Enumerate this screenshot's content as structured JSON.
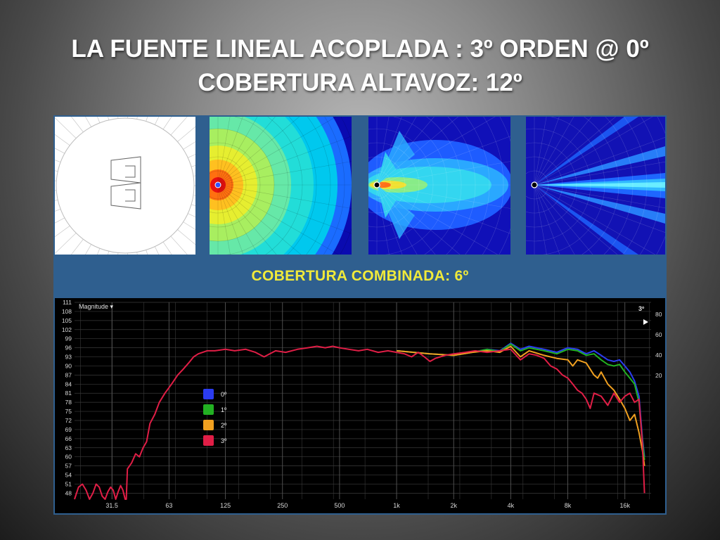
{
  "slide": {
    "title_line1": "LA FUENTE LINEAL ACOPLADA : 3º ORDEN @ 0º",
    "title_line2": "COBERTURA ALTAVOZ: 12º"
  },
  "figure": {
    "banner": "COBERTURA COMBINADA: 6º",
    "panels": [
      {
        "name": "array-diagram"
      },
      {
        "name": "coverage-map-wide",
        "colormap": "jet"
      },
      {
        "name": "coverage-map-mid",
        "colormap": "jet"
      },
      {
        "name": "coverage-map-narrow",
        "colormap": "jet"
      }
    ]
  },
  "colors": {
    "frame": "#2f5f8f",
    "banner_text": "#f0ea3a",
    "plot_bg": "#000000",
    "grid": "#3a3a3a"
  },
  "chart_data": {
    "type": "line",
    "title": "Magnitude ▾",
    "corner_label": "3º",
    "x_scale": "log",
    "xlim": [
      20,
      22000
    ],
    "x_ticks": [
      31.5,
      63,
      125,
      250,
      500,
      1000,
      2000,
      4000,
      8000,
      16000
    ],
    "x_tick_labels": [
      "31.5",
      "63",
      "125",
      "250",
      "500",
      "1k",
      "2k",
      "4k",
      "8k",
      "16k"
    ],
    "ylim": [
      46,
      111
    ],
    "y_ticks": [
      111,
      108,
      105,
      102,
      99,
      96,
      93,
      90,
      87,
      84,
      81,
      78,
      75,
      72,
      69,
      66,
      63,
      60,
      57,
      54,
      51,
      48
    ],
    "y2_ticks": [
      80,
      60,
      40,
      20
    ],
    "grid": true,
    "legend_position": "center-left",
    "series": [
      {
        "name": "0º",
        "color": "#2b3cf0",
        "x": [
          1000,
          1500,
          2000,
          2500,
          3000,
          3500,
          4000,
          4500,
          5000,
          6000,
          7000,
          8000,
          9000,
          10000,
          11000,
          12000,
          13000,
          14000,
          15000,
          16000,
          17000,
          18000,
          19000,
          19800,
          20300
        ],
        "y": [
          95,
          94,
          93.5,
          94.5,
          95.5,
          95,
          97.5,
          95.5,
          96.5,
          95.5,
          94.5,
          96,
          95.5,
          94,
          95,
          93.5,
          92,
          91.5,
          92,
          90,
          88,
          85,
          80,
          66,
          60
        ]
      },
      {
        "name": "1º",
        "color": "#22b022",
        "x": [
          1000,
          1500,
          2000,
          2500,
          3000,
          3500,
          4000,
          4500,
          5000,
          6000,
          7000,
          8000,
          9000,
          10000,
          11000,
          12000,
          13000,
          14000,
          15000,
          16000,
          17000,
          18000,
          19000,
          19800,
          20300
        ],
        "y": [
          95,
          94,
          93.5,
          94.5,
          95.5,
          94.8,
          97.2,
          95,
          96,
          95,
          94,
          95.5,
          95,
          93.5,
          94,
          92,
          90.5,
          90,
          90.5,
          88,
          86,
          84,
          78,
          65,
          59
        ]
      },
      {
        "name": "2º",
        "color": "#f0a020",
        "x": [
          1000,
          1500,
          2000,
          2500,
          3000,
          3500,
          4000,
          4500,
          5000,
          6000,
          7000,
          8000,
          8500,
          9000,
          10000,
          11000,
          11500,
          12000,
          13000,
          14000,
          15000,
          16000,
          17000,
          18000,
          19000,
          19800,
          20300
        ],
        "y": [
          95,
          94,
          93.5,
          94.5,
          95,
          94.5,
          96.5,
          93,
          95,
          93.5,
          92.5,
          92,
          90,
          92,
          91,
          87,
          86,
          88,
          84,
          82,
          79,
          76,
          72,
          74,
          68,
          62,
          57
        ]
      },
      {
        "name": "3º",
        "color": "#e01e46",
        "x": [
          20,
          21,
          22,
          23,
          24,
          25,
          26,
          27,
          28,
          29,
          30,
          31,
          32,
          33,
          34,
          35,
          36,
          37,
          37.5,
          38,
          40,
          42,
          44,
          46,
          48,
          50,
          53,
          56,
          60,
          65,
          70,
          75,
          80,
          85,
          90,
          100,
          110,
          125,
          140,
          160,
          180,
          200,
          230,
          260,
          300,
          340,
          380,
          420,
          460,
          500,
          560,
          630,
          700,
          800,
          900,
          1000,
          1100,
          1200,
          1300,
          1400,
          1500,
          1600,
          1700,
          1800,
          2000,
          2300,
          2600,
          3000,
          3500,
          4000,
          4500,
          5000,
          5500,
          6000,
          6500,
          7000,
          7500,
          8000,
          8500,
          9000,
          9500,
          10000,
          10500,
          11000,
          12000,
          13000,
          14000,
          15000,
          16000,
          17000,
          18000,
          19000,
          19800,
          20300
        ],
        "y": [
          46,
          50,
          51,
          49,
          46,
          48,
          51,
          50,
          47,
          46,
          48.5,
          50,
          49,
          46,
          48.5,
          50.5,
          49,
          46,
          46,
          56,
          58,
          61,
          60,
          63,
          65,
          71,
          74,
          78,
          81,
          84,
          87,
          89,
          91,
          93,
          94,
          95,
          95,
          95.5,
          95,
          95.5,
          94.5,
          93,
          95,
          94.5,
          95.5,
          96,
          96.5,
          96,
          96.5,
          96,
          95.5,
          95,
          95.5,
          94.5,
          95,
          94.5,
          94,
          93,
          94.5,
          93,
          91.5,
          92.5,
          93,
          93.5,
          94,
          94.5,
          95,
          94.5,
          95,
          95.5,
          92,
          94,
          93.5,
          92.5,
          90,
          89,
          87,
          86,
          84,
          82,
          81,
          79,
          76,
          81,
          80,
          77,
          81,
          78,
          80,
          81,
          78,
          79,
          64,
          48
        ]
      }
    ]
  }
}
